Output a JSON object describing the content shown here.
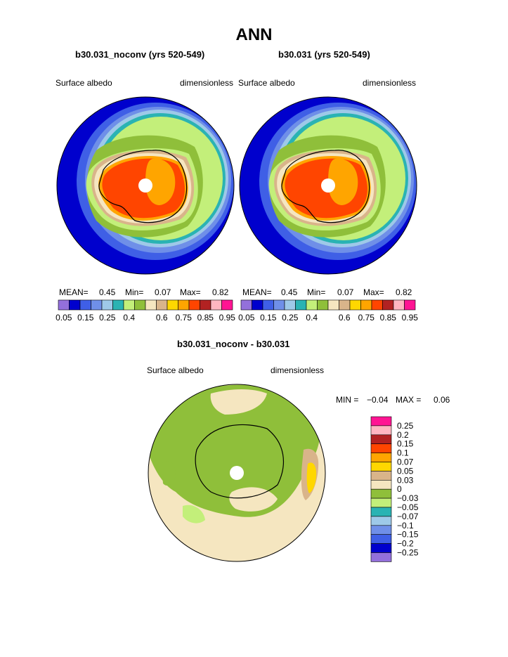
{
  "figure": {
    "title": "ANN",
    "panel1": {
      "title": "b30.031_noconv (yrs 520-549)",
      "left_label": "Surface albedo",
      "right_label": "dimensionless",
      "mean_label": "MEAN=",
      "mean": "0.45",
      "min_label": "Min=",
      "min": "0.07",
      "max_label": "Max=",
      "max": "0.82"
    },
    "panel2": {
      "title": "b30.031 (yrs 520-549)",
      "left_label": "Surface albedo",
      "right_label": "dimensionless",
      "mean_label": "MEAN=",
      "mean": "0.45",
      "min_label": "Min=",
      "min": "0.07",
      "max_label": "Max=",
      "max": "0.82"
    },
    "panel3": {
      "title": "b30.031_noconv - b30.031",
      "left_label": "Surface albedo",
      "right_label": "dimensionless",
      "min_label": "MIN =",
      "min": "−0.04",
      "max_label": "MAX =",
      "max": "0.06"
    }
  },
  "chart_data": [
    {
      "type": "heatmap",
      "projection": "south-polar-stereographic",
      "title": "b30.031_noconv (yrs 520-549)",
      "variable": "Surface albedo",
      "units": "dimensionless",
      "stats": {
        "mean": 0.45,
        "min": 0.07,
        "max": 0.82
      },
      "levels": [
        0.05,
        0.15,
        0.25,
        0.4,
        0.6,
        0.75,
        0.85,
        0.95
      ],
      "level_labels": [
        "0.05",
        "0.15",
        "0.25",
        "0.4",
        "0.6",
        "0.75",
        "0.85",
        "0.95"
      ],
      "colorbar": [
        "#9370db",
        "#0000cd",
        "#3f5fe6",
        "#6f8fe8",
        "#9ec9e8",
        "#2ab3b3",
        "#c3ef7a",
        "#8fbf3a",
        "#f5e6c0",
        "#d9b48a",
        "#ffd700",
        "#ffa500",
        "#ff4500",
        "#b22222",
        "#ffb6c1",
        "#ff1493"
      ]
    },
    {
      "type": "heatmap",
      "projection": "south-polar-stereographic",
      "title": "b30.031 (yrs 520-549)",
      "variable": "Surface albedo",
      "units": "dimensionless",
      "stats": {
        "mean": 0.45,
        "min": 0.07,
        "max": 0.82
      },
      "levels": [
        0.05,
        0.15,
        0.25,
        0.4,
        0.6,
        0.75,
        0.85,
        0.95
      ],
      "level_labels": [
        "0.05",
        "0.15",
        "0.25",
        "0.4",
        "0.6",
        "0.75",
        "0.85",
        "0.95"
      ],
      "colorbar": [
        "#9370db",
        "#0000cd",
        "#3f5fe6",
        "#6f8fe8",
        "#9ec9e8",
        "#2ab3b3",
        "#c3ef7a",
        "#8fbf3a",
        "#f5e6c0",
        "#d9b48a",
        "#ffd700",
        "#ffa500",
        "#ff4500",
        "#b22222",
        "#ffb6c1",
        "#ff1493"
      ]
    },
    {
      "type": "heatmap",
      "projection": "south-polar-stereographic",
      "title": "b30.031_noconv - b30.031",
      "variable": "Surface albedo",
      "units": "dimensionless",
      "stats": {
        "min": -0.04,
        "max": 0.06
      },
      "levels": [
        0.25,
        0.2,
        0.15,
        0.1,
        0.07,
        0.05,
        0.03,
        0,
        -0.03,
        -0.05,
        -0.07,
        -0.1,
        -0.15,
        -0.2,
        -0.25
      ],
      "level_labels": [
        "0.25",
        "0.2",
        "0.15",
        "0.1",
        "0.07",
        "0.05",
        "0.03",
        "0",
        "−0.03",
        "−0.05",
        "−0.07",
        "−0.1",
        "−0.15",
        "−0.2",
        "−0.25"
      ],
      "colorbar": [
        "#ff1493",
        "#ffb6c1",
        "#b22222",
        "#ff4500",
        "#ffa500",
        "#ffd700",
        "#d9b48a",
        "#f5e6c0",
        "#8fbf3a",
        "#c3ef7a",
        "#2ab3b3",
        "#9ec9e8",
        "#6f8fe8",
        "#3f5fe6",
        "#0000cd",
        "#9370db"
      ]
    }
  ]
}
